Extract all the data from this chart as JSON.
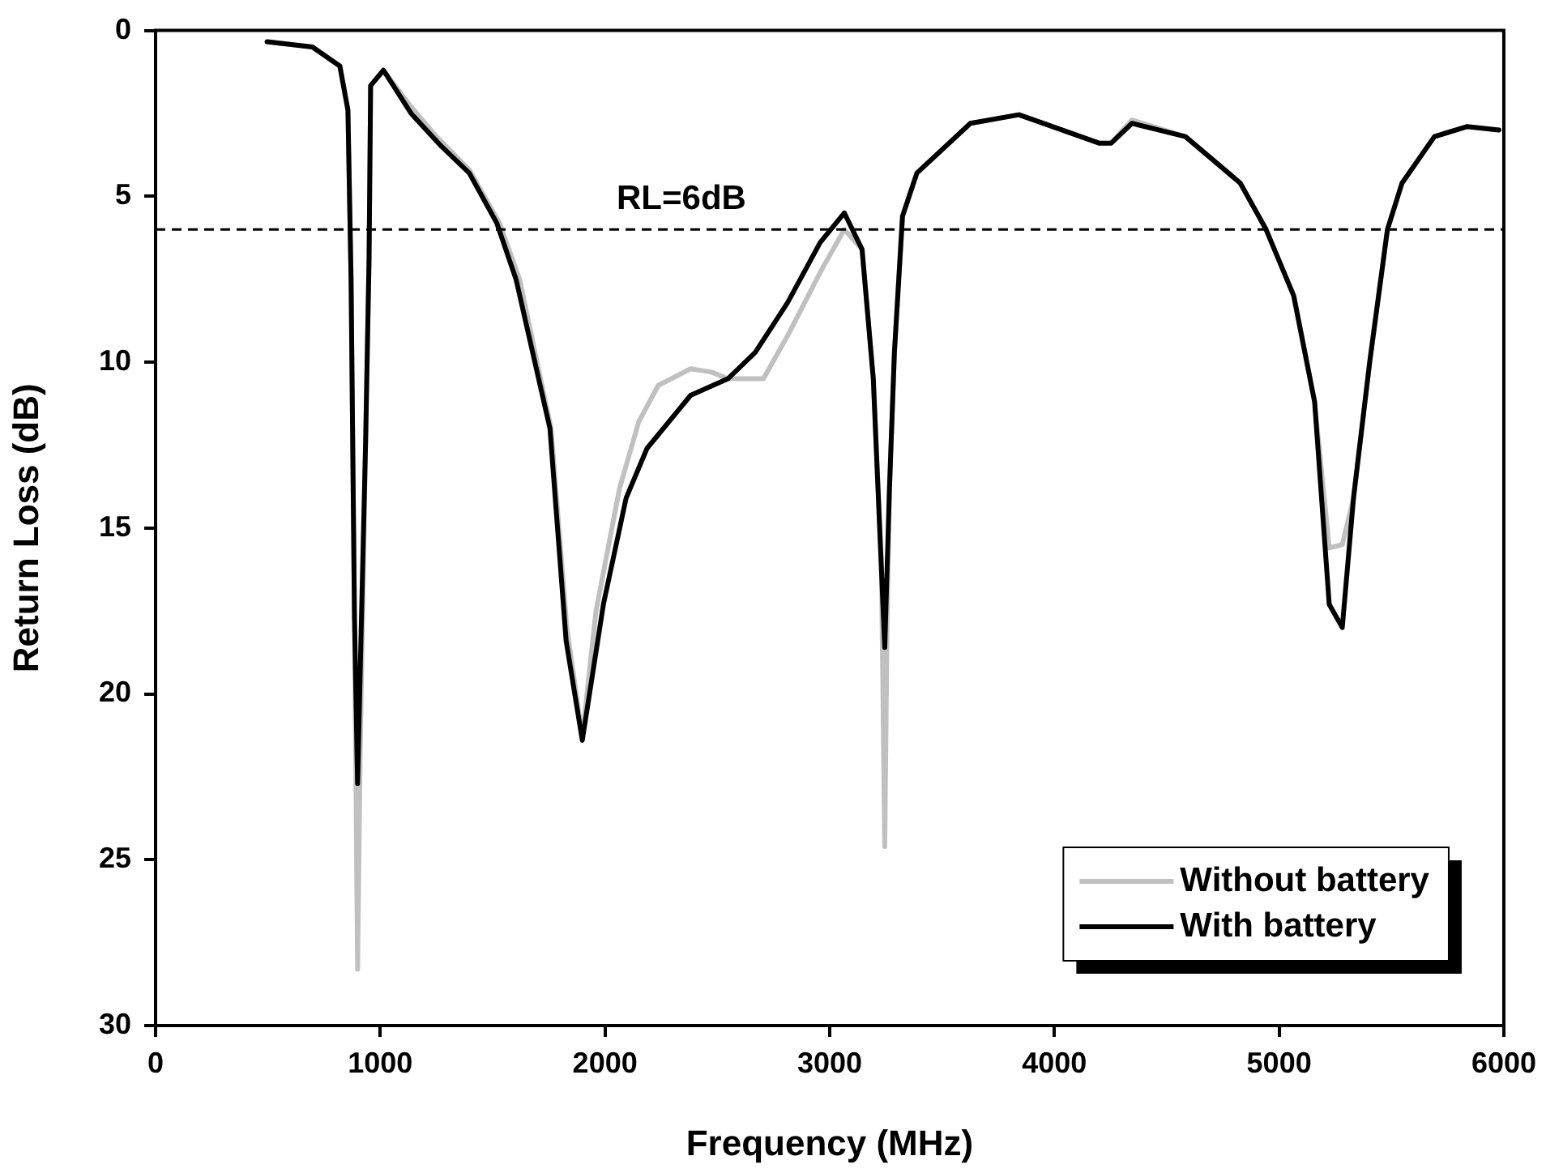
{
  "chart_data": {
    "type": "line",
    "xlabel": "Frequency (MHz)",
    "ylabel": "Return Loss (dB)",
    "xlim": [
      0,
      6000
    ],
    "xticks": [
      0,
      1000,
      2000,
      3000,
      4000,
      5000,
      6000
    ],
    "ylim": [
      30,
      0
    ],
    "yticks": [
      0,
      5,
      10,
      15,
      20,
      25,
      30
    ],
    "grid": false,
    "legend": "bottom right",
    "marker": "none",
    "line_style": "solid",
    "ref_lines": [
      {
        "axis": "y",
        "value": 6,
        "label": "RL=6dB",
        "color": "#000000",
        "line_style": "dashed"
      }
    ],
    "series": [
      {
        "name": "Without battery",
        "color": "#c0c0c0",
        "x": [
          496,
          698,
          820,
          856,
          870,
          885,
          899,
          910,
          935,
          950,
          957,
          1014,
          1137,
          1250,
          1396,
          1530,
          1620,
          1760,
          1830,
          1899,
          1960,
          2065,
          2150,
          2237,
          2381,
          2475,
          2547,
          2705,
          2813,
          2957,
          3065,
          3144,
          3194,
          3230,
          3245,
          3255,
          3266,
          3288,
          3324,
          3388,
          3626,
          3842,
          4201,
          4252,
          4345,
          4583,
          4827,
          4942,
          5065,
          5158,
          5223,
          5281,
          5331,
          5403,
          5482,
          5547,
          5691,
          5835,
          5978
        ],
        "values": [
          0.34,
          0.5,
          1.07,
          2.4,
          7.5,
          17.6,
          28.3,
          22,
          12.3,
          6.9,
          1.66,
          1.2,
          2.3,
          3.2,
          4.2,
          5.8,
          7.5,
          12,
          18,
          21.3,
          17.5,
          13.8,
          11.8,
          10.7,
          10.2,
          10.3,
          10.5,
          10.5,
          9.2,
          7.3,
          6.0,
          6.6,
          10.5,
          16,
          24.6,
          18,
          13.8,
          9.7,
          5.6,
          4.3,
          2.8,
          2.54,
          3.4,
          3.4,
          2.7,
          3.2,
          4.6,
          6.0,
          8.0,
          11.2,
          15.6,
          15.5,
          14.1,
          10.0,
          6.0,
          4.6,
          3.2,
          2.9,
          3.0
        ]
      },
      {
        "name": "With battery",
        "color": "#000000",
        "x": [
          496,
          698,
          820,
          856,
          870,
          885,
          899,
          935,
          950,
          957,
          1014,
          1137,
          1273,
          1396,
          1518,
          1604,
          1755,
          1827,
          1899,
          1993,
          2094,
          2187,
          2381,
          2547,
          2669,
          2813,
          2957,
          3065,
          3144,
          3194,
          3245,
          3266,
          3288,
          3324,
          3388,
          3626,
          3842,
          4201,
          4252,
          4345,
          4583,
          4827,
          4942,
          5065,
          5158,
          5223,
          5281,
          5331,
          5403,
          5482,
          5547,
          5691,
          5835,
          5978
        ],
        "values": [
          0.34,
          0.5,
          1.07,
          2.4,
          7.5,
          17.6,
          22.7,
          12.3,
          6.9,
          1.66,
          1.2,
          2.5,
          3.5,
          4.3,
          5.8,
          7.5,
          12.0,
          18.4,
          21.4,
          17.3,
          14.1,
          12.6,
          11.0,
          10.5,
          9.7,
          8.2,
          6.4,
          5.5,
          6.6,
          10.5,
          18.6,
          13.8,
          9.7,
          5.6,
          4.3,
          2.8,
          2.54,
          3.4,
          3.4,
          2.8,
          3.2,
          4.6,
          6.0,
          8.0,
          11.2,
          17.3,
          18.0,
          14.1,
          10.0,
          6.0,
          4.6,
          3.2,
          2.9,
          3.0
        ]
      }
    ]
  }
}
